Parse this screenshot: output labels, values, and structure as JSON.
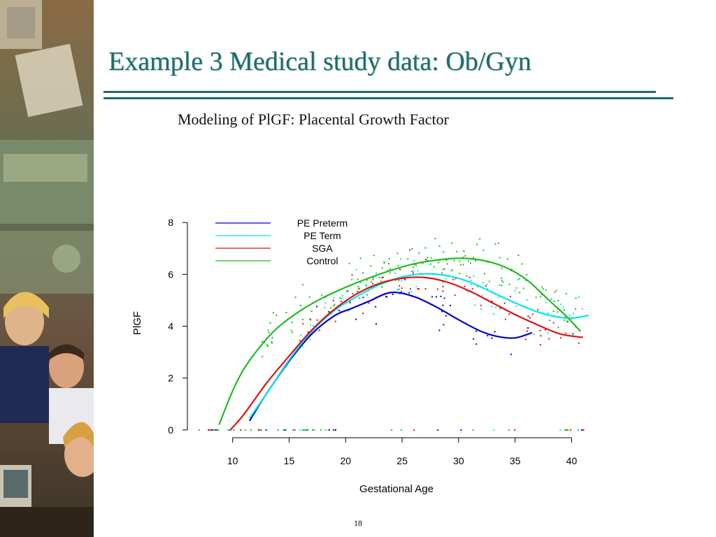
{
  "slide": {
    "title": "Example 3 Medical study data: Ob/Gyn",
    "subtitle": "Modeling of PlGF: Placental Growth Factor",
    "page_number": "18",
    "title_color": "#1f6b6b"
  },
  "side_image": {
    "description_icon": "office-workers-money-collage"
  },
  "chart_data": {
    "type": "line",
    "xlabel": "Gestational Age",
    "ylabel": "PlGF",
    "xlim": [
      6,
      43
    ],
    "ylim": [
      -0.3,
      8.6
    ],
    "x_ticks": [
      10,
      15,
      20,
      25,
      30,
      35,
      40
    ],
    "y_ticks": [
      0,
      2,
      4,
      6,
      8
    ],
    "grid": false,
    "legend_position": "top-left",
    "series": [
      {
        "name": "PE Preterm",
        "color": "#0000cc",
        "x": [
          11.5,
          13,
          15,
          17,
          19,
          20.5,
          22,
          24,
          26,
          28,
          30,
          32,
          33.5,
          35,
          36.5
        ],
        "y": [
          0.35,
          1.4,
          2.65,
          3.7,
          4.4,
          4.68,
          4.95,
          5.3,
          5.15,
          4.75,
          4.25,
          3.8,
          3.6,
          3.55,
          3.75
        ]
      },
      {
        "name": "PE Term",
        "color": "#00e5ee",
        "x": [
          11.5,
          13,
          15,
          17,
          19,
          21,
          23,
          25,
          27,
          29,
          31,
          33,
          35,
          37,
          38.5,
          39.5,
          40.5,
          41.5
        ],
        "y": [
          0.45,
          1.4,
          2.7,
          3.8,
          4.6,
          5.15,
          5.6,
          5.9,
          6.02,
          5.95,
          5.7,
          5.3,
          4.9,
          4.55,
          4.38,
          4.32,
          4.33,
          4.42
        ]
      },
      {
        "name": "SGA",
        "color": "#dd1111",
        "x": [
          9.8,
          11,
          13,
          15,
          17,
          19,
          21,
          23,
          25,
          27,
          29,
          31,
          33,
          35,
          37,
          39,
          41
        ],
        "y": [
          0,
          0.6,
          1.8,
          2.85,
          3.85,
          4.65,
          5.25,
          5.65,
          5.85,
          5.88,
          5.7,
          5.35,
          4.9,
          4.45,
          4.05,
          3.7,
          3.57
        ]
      },
      {
        "name": "Control",
        "color": "#22bb22",
        "x": [
          8.8,
          10,
          11,
          12.5,
          14,
          16,
          18,
          20,
          22,
          24,
          26,
          28,
          30,
          32,
          34,
          36,
          38,
          39.5,
          40.8
        ],
        "y": [
          0.2,
          1.5,
          2.35,
          3.25,
          3.95,
          4.6,
          5.1,
          5.5,
          5.85,
          6.15,
          6.4,
          6.55,
          6.62,
          6.55,
          6.3,
          5.8,
          5.0,
          4.4,
          3.8
        ]
      }
    ]
  }
}
